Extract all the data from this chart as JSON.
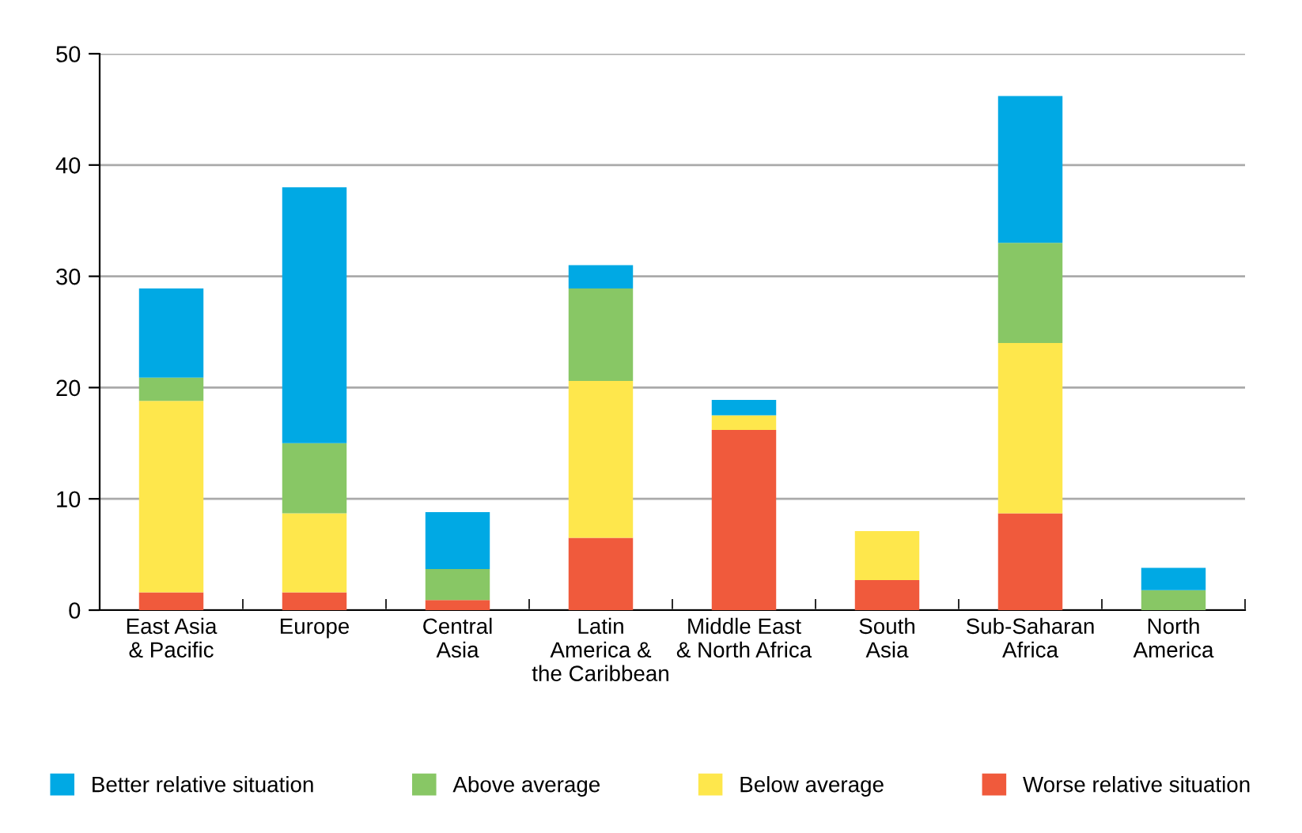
{
  "chart_data": {
    "type": "bar",
    "stacked": true,
    "categories": [
      "East Asia\n& Pacific",
      "Europe",
      "Central\nAsia",
      "Latin\nAmerica &\nthe Caribbean",
      "Middle East\n& North Africa",
      "South\nAsia",
      "Sub-Saharan\nAfrica",
      "North\nAmerica"
    ],
    "series": [
      {
        "name": "Worse relative situation",
        "color": "#f05a3c",
        "values": [
          1.6,
          1.6,
          0.9,
          6.5,
          16.2,
          2.7,
          8.7,
          0
        ]
      },
      {
        "name": "Below average",
        "color": "#fee74c",
        "values": [
          17.2,
          7.1,
          0,
          14.1,
          1.3,
          4.4,
          15.3,
          0
        ]
      },
      {
        "name": "Above average",
        "color": "#88c765",
        "values": [
          2.1,
          6.3,
          2.8,
          8.3,
          0,
          0,
          9.0,
          1.8
        ]
      },
      {
        "name": "Better relative situation",
        "color": "#00a9e4",
        "values": [
          8.0,
          23.0,
          5.1,
          2.1,
          1.4,
          0,
          13.2,
          2.0
        ]
      }
    ],
    "ylim": [
      0,
      50
    ],
    "yticks": [
      0,
      10,
      20,
      30,
      40,
      50
    ],
    "grid": "y",
    "legend": "bottom"
  }
}
